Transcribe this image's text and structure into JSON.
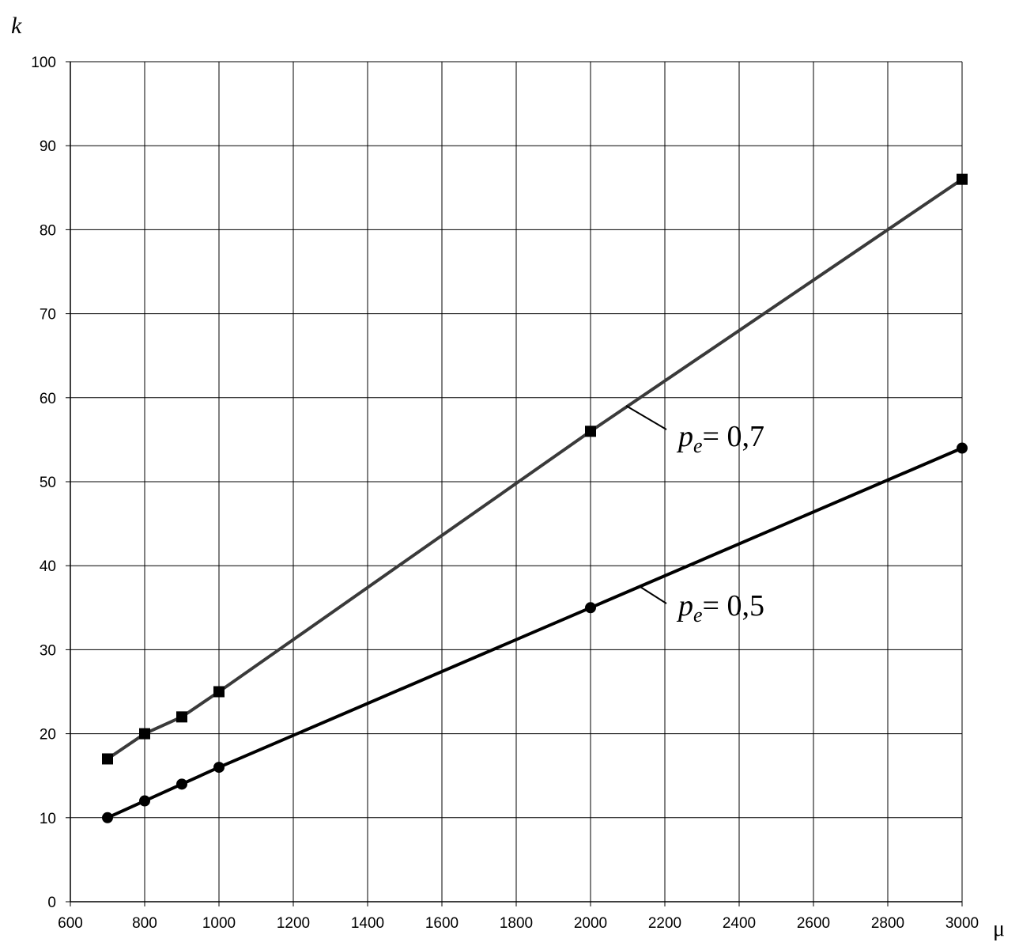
{
  "chart_data": {
    "type": "line",
    "title": "",
    "xlabel": "μ",
    "ylabel": "k",
    "xlim": [
      600,
      3000
    ],
    "ylim": [
      0,
      100
    ],
    "x_ticks": [
      "600",
      "800",
      "1000",
      "1200",
      "1400",
      "1600",
      "1800",
      "2000",
      "2200",
      "2400",
      "2600",
      "2800",
      "3000"
    ],
    "y_ticks": [
      "0",
      "10",
      "20",
      "30",
      "40",
      "50",
      "60",
      "70",
      "80",
      "90",
      "100"
    ],
    "grid": true,
    "legend": "none",
    "series": [
      {
        "marker": "square",
        "color": "#3a3a3a",
        "x": [
          700,
          800,
          900,
          1000,
          2000,
          3000
        ],
        "y": [
          17,
          20,
          22,
          25,
          56,
          86
        ],
        "annotation": {
          "var": "p",
          "sub": "e",
          "rest": "= 0,7"
        }
      },
      {
        "marker": "circle",
        "color": "#000000",
        "x": [
          700,
          800,
          900,
          1000,
          2000,
          3000
        ],
        "y": [
          10,
          12,
          14,
          16,
          35,
          54
        ],
        "annotation": {
          "var": "p",
          "sub": "e",
          "rest": "= 0,5"
        }
      }
    ]
  }
}
